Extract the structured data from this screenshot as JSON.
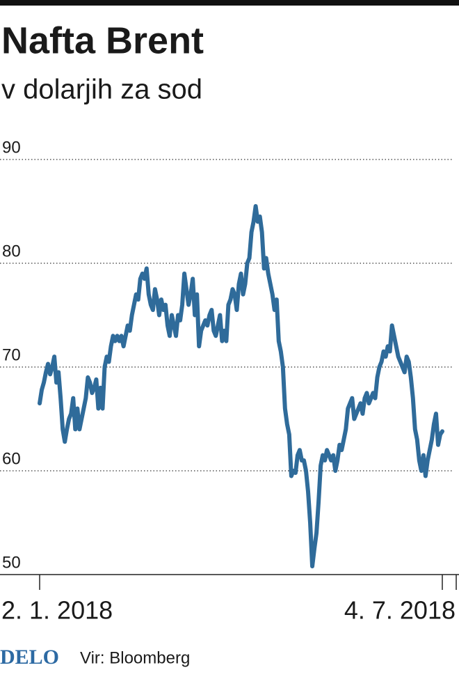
{
  "chart_data": {
    "type": "line",
    "title": "Nafta Brent",
    "subtitle": "v dolarjih za sod",
    "categories": [
      "2. 1. 2018",
      null,
      null,
      null,
      null,
      null,
      null,
      null,
      null,
      null,
      null,
      null,
      null,
      null,
      null,
      null,
      null,
      null,
      null,
      null,
      null,
      null,
      null,
      null,
      null,
      null,
      null,
      null,
      null,
      null,
      null,
      null,
      null,
      null,
      null,
      null,
      null,
      null,
      null,
      null,
      null,
      null,
      null,
      null,
      null,
      null,
      null,
      null,
      null,
      null,
      null,
      null,
      null,
      null,
      null,
      null,
      null,
      null,
      null,
      null,
      null,
      null,
      null,
      null,
      null,
      null,
      null,
      null,
      null,
      null,
      null,
      null,
      null,
      null,
      null,
      null,
      null,
      null,
      null,
      null,
      null,
      null,
      null,
      null,
      null,
      null,
      null,
      null,
      null,
      null,
      null,
      null,
      null,
      null,
      null,
      null,
      null,
      null,
      null,
      null,
      null,
      null,
      null,
      null,
      null,
      null,
      null,
      null,
      null,
      null,
      null,
      null,
      null,
      null,
      null,
      null,
      null,
      null,
      null,
      null,
      null,
      null,
      null,
      null,
      null,
      null,
      null,
      null,
      null,
      null,
      null,
      null,
      null,
      null,
      null,
      null,
      null,
      null,
      null,
      null,
      null,
      null,
      null,
      null,
      null,
      null,
      null,
      null,
      null,
      null,
      null,
      null,
      null,
      null,
      null,
      null,
      null,
      null,
      null,
      null,
      null,
      null,
      null,
      null,
      null,
      null,
      null,
      null,
      null,
      null,
      null,
      null,
      null,
      null,
      null,
      null,
      null,
      null,
      null,
      null,
      null,
      null,
      null,
      null,
      null,
      null,
      null,
      null,
      null,
      null,
      null,
      null,
      "4. 7. 2018"
    ],
    "values": [
      66.5,
      67.8,
      68.5,
      69.5,
      70.3,
      69.3,
      70,
      71,
      68.5,
      69.5,
      67,
      64,
      62.8,
      64,
      65,
      65.5,
      67,
      64,
      66,
      64,
      65,
      66,
      67,
      69,
      68.5,
      67.5,
      68,
      68.8,
      66,
      68,
      66,
      70,
      71,
      70.5,
      72,
      73,
      72.5,
      73,
      72.5,
      73,
      72,
      73,
      74,
      73.5,
      75,
      76,
      77,
      76.5,
      78.5,
      79,
      78.5,
      79.5,
      77,
      76,
      75.5,
      77.5,
      76.5,
      75,
      76.5,
      75.5,
      76,
      74,
      73,
      75,
      74,
      73,
      75,
      74.5,
      76,
      79,
      77.5,
      76,
      77,
      78.5,
      75,
      77,
      72,
      73.5,
      74,
      74.5,
      74,
      75,
      75.5,
      73.5,
      73,
      74,
      75,
      72.5,
      73.5,
      72.5,
      76,
      76.5,
      77.5,
      77,
      75.5,
      78,
      79,
      77,
      78,
      80,
      80.5,
      83,
      84,
      85.5,
      84,
      84.5,
      83,
      79.5,
      80.5,
      79,
      78,
      77,
      75.5,
      76.5,
      72.5,
      71.5,
      70,
      66,
      64.5,
      63.5,
      59.5,
      60,
      59.8,
      61.5,
      62,
      61,
      61,
      60,
      58,
      55,
      50.8,
      52.5,
      54,
      57,
      60.5,
      61.5,
      61,
      62,
      61.5,
      61,
      61.5,
      60,
      61,
      62.5,
      62,
      63,
      64,
      66,
      66.5,
      67,
      65,
      65.5,
      66,
      66.5,
      65.5,
      67,
      67.5,
      66.5,
      67,
      67.5,
      67,
      69,
      70,
      70.5,
      71.5,
      71,
      72,
      71.5,
      74,
      73,
      72,
      71,
      70.5,
      70,
      69.5,
      71,
      70.5,
      69,
      67,
      64,
      63,
      61,
      60,
      61.5,
      59.5,
      61,
      62,
      63,
      64.5,
      65.5,
      62.5,
      63.5,
      63.8
    ],
    "color": "#2f6b9a",
    "ylim": [
      50,
      90
    ],
    "yticks": [
      50,
      60,
      70,
      80,
      90
    ],
    "grid": true,
    "logo": "DELO",
    "source": "Vir: Bloomberg"
  }
}
